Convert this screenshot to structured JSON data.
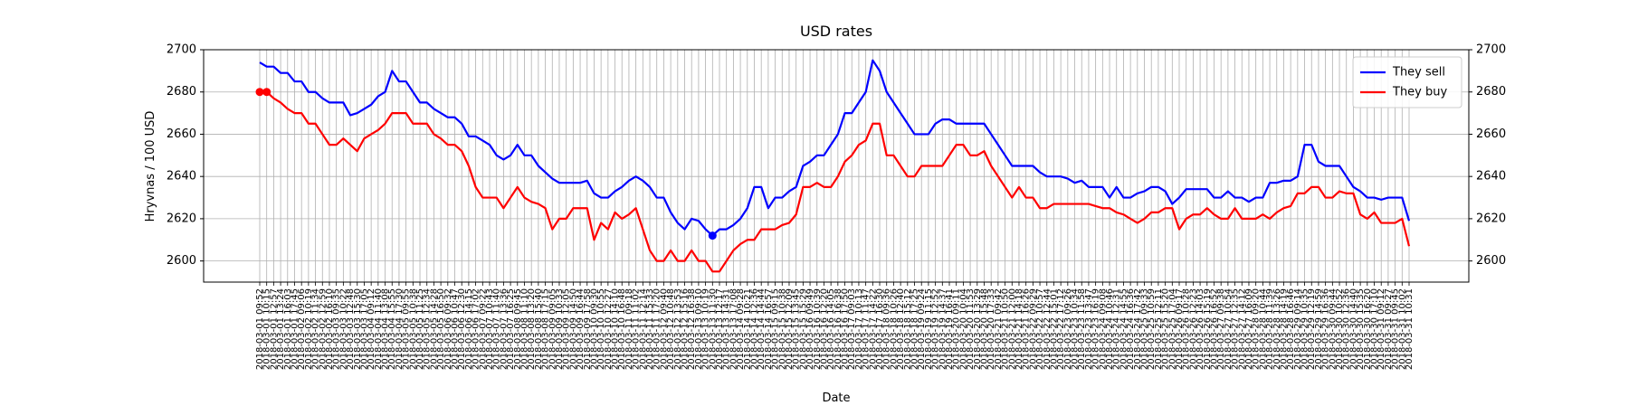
{
  "chart_data": {
    "type": "line",
    "title": "USD rates",
    "x_label": "Date",
    "y_label": "Hryvnas / 100 USD",
    "categories": [
      "2018-03-01 09:52",
      "2018-03-01 10:15",
      "2018-03-01 12:57",
      "2018-03-01 13:24",
      "2018-03-01 16:03",
      "2018-03-01 17:45",
      "2018-03-02 09:06",
      "2018-03-02 10:19",
      "2018-03-02 11:34",
      "2018-03-02 12:59",
      "2018-03-02 16:10",
      "2018-03-03 09:35",
      "2018-03-03 10:22",
      "2018-03-03 12:48",
      "2018-03-03 15:30",
      "2018-03-03 17:05",
      "2018-03-04 09:12",
      "2018-03-04 11:40",
      "2018-03-04 13:08",
      "2018-03-04 15:55",
      "2018-03-04 17:30",
      "2018-03-05 09:55",
      "2018-03-05 10:38",
      "2018-03-05 11:25",
      "2018-03-05 12:34",
      "2018-03-05 14:28",
      "2018-03-05 16:50",
      "2018-03-06 09:32",
      "2018-03-06 10:47",
      "2018-03-06 12:30",
      "2018-03-06 14:15",
      "2018-03-06 17:02",
      "2018-03-07 09:22",
      "2018-03-07 10:43",
      "2018-03-07 11:40",
      "2018-03-07 13:36",
      "2018-03-07 16:25",
      "2018-03-08 09:45",
      "2018-03-08 11:10",
      "2018-03-08 13:20",
      "2018-03-08 15:40",
      "2018-03-08 17:15",
      "2018-03-09 09:05",
      "2018-03-09 10:33",
      "2018-03-09 12:05",
      "2018-03-09 14:50",
      "2018-03-09 16:44",
      "2018-03-09 17:58",
      "2018-03-10 09:30",
      "2018-03-10 10:55",
      "2018-03-10 12:27",
      "2018-03-10 14:10",
      "2018-03-10 16:48",
      "2018-03-11 09:18",
      "2018-03-11 11:02",
      "2018-03-11 12:14",
      "2018-03-11 15:33",
      "2018-03-11 17:20",
      "2018-03-12 09:40",
      "2018-03-12 10:48",
      "2018-03-12 13:53",
      "2018-03-12 15:16",
      "2018-03-12 16:38",
      "2018-03-13 09:10",
      "2018-03-13 10:19",
      "2018-03-13 11:30",
      "2018-03-13 12:17",
      "2018-03-13 14:31",
      "2018-03-13 17:08",
      "2018-03-14 09:28",
      "2018-03-14 10:21",
      "2018-03-14 12:36",
      "2018-03-14 14:44",
      "2018-03-14 16:57",
      "2018-03-15 09:15",
      "2018-03-15 10:38",
      "2018-03-15 12:09",
      "2018-03-15 13:45",
      "2018-03-15 15:29",
      "2018-03-16 09:49",
      "2018-03-16 10:39",
      "2018-03-16 12:20",
      "2018-03-16 14:05",
      "2018-03-16 16:38",
      "2018-03-16 17:50",
      "2018-03-17 09:03",
      "2018-03-17 10:13",
      "2018-03-17 11:47",
      "2018-03-17 14:22",
      "2018-03-17 16:30",
      "2018-03-18 09:36",
      "2018-03-18 10:26",
      "2018-03-18 12:40",
      "2018-03-18 15:12",
      "2018-03-18 17:25",
      "2018-03-19 09:24",
      "2018-03-19 11:15",
      "2018-03-19 12:52",
      "2018-03-19 14:37",
      "2018-03-19 16:41",
      "2018-03-20 09:11",
      "2018-03-20 10:04",
      "2018-03-20 11:53",
      "2018-03-20 13:29",
      "2018-03-20 15:48",
      "2018-03-20 17:33",
      "2018-03-21 09:42",
      "2018-03-21 10:50",
      "2018-03-21 12:00",
      "2018-03-21 14:18",
      "2018-03-21 16:26",
      "2018-03-22 09:29",
      "2018-03-22 10:57",
      "2018-03-22 12:44",
      "2018-03-22 15:01",
      "2018-03-22 17:12",
      "2018-03-23 09:26",
      "2018-03-23 10:34",
      "2018-03-23 11:58",
      "2018-03-23 13:47",
      "2018-03-23 16:19",
      "2018-03-24 09:08",
      "2018-03-24 10:46",
      "2018-03-24 12:31",
      "2018-03-24 14:55",
      "2018-03-24 16:36",
      "2018-03-24 17:42",
      "2018-03-25 09:33",
      "2018-03-25 10:59",
      "2018-03-25 12:11",
      "2018-03-25 15:20",
      "2018-03-25 17:04",
      "2018-03-26 09:17",
      "2018-03-26 10:28",
      "2018-03-26 12:23",
      "2018-03-26 14:03",
      "2018-03-26 15:19",
      "2018-03-26 16:52",
      "2018-03-27 09:38",
      "2018-03-27 10:54",
      "2018-03-27 12:35",
      "2018-03-27 14:12",
      "2018-03-27 16:09",
      "2018-03-28 09:20",
      "2018-03-28 10:44",
      "2018-03-28 11:39",
      "2018-03-28 13:26",
      "2018-03-28 14:19",
      "2018-03-28 16:46",
      "2018-03-29 09:14",
      "2018-03-29 10:35",
      "2018-03-29 12:19",
      "2018-03-29 14:59",
      "2018-03-29 16:36",
      "2018-03-30 09:44",
      "2018-03-30 10:52",
      "2018-03-30 12:36",
      "2018-03-30 14:40",
      "2018-03-30 15:35",
      "2018-03-30 16:20",
      "2018-03-30 17:10",
      "2018-03-31 09:12",
      "2018-03-31 09:27",
      "2018-03-31 09:45",
      "2018-03-31 10:02",
      "2018-03-31 10:31"
    ],
    "series": [
      {
        "name": "They sell",
        "color": "#0000ff",
        "values": [
          2694,
          2692,
          2692,
          2689,
          2689,
          2685,
          2685,
          2680,
          2680,
          2677,
          2675,
          2675,
          2675,
          2669,
          2670,
          2672,
          2674,
          2678,
          2680,
          2690,
          2685,
          2685,
          2680,
          2675,
          2675,
          2672,
          2670,
          2668,
          2668,
          2665,
          2659,
          2659,
          2657,
          2655,
          2650,
          2648,
          2650,
          2655,
          2650,
          2650,
          2645,
          2642,
          2639,
          2637,
          2637,
          2637,
          2637,
          2638,
          2632,
          2630,
          2630,
          2633,
          2635,
          2638,
          2640,
          2638,
          2635,
          2630,
          2630,
          2623,
          2618,
          2615,
          2620,
          2619,
          2615,
          2612,
          2615,
          2615,
          2617,
          2620,
          2625,
          2635,
          2635,
          2625,
          2630,
          2630,
          2633,
          2635,
          2645,
          2647,
          2650,
          2650,
          2655,
          2660,
          2670,
          2670,
          2675,
          2680,
          2695,
          2690,
          2680,
          2675,
          2670,
          2665,
          2660,
          2660,
          2660,
          2665,
          2667,
          2667,
          2665,
          2665,
          2665,
          2665,
          2665,
          2660,
          2655,
          2650,
          2645,
          2645,
          2645,
          2645,
          2642,
          2640,
          2640,
          2640,
          2639,
          2637,
          2638,
          2635,
          2635,
          2635,
          2630,
          2635,
          2630,
          2630,
          2632,
          2633,
          2635,
          2635,
          2633,
          2627,
          2630,
          2634,
          2634,
          2634,
          2634,
          2630,
          2630,
          2633,
          2630,
          2630,
          2628,
          2630,
          2630,
          2637,
          2637,
          2638,
          2638,
          2640,
          2655,
          2655,
          2647,
          2645,
          2645,
          2645,
          2640,
          2635,
          2633,
          2630,
          2630,
          2629,
          2630,
          2630,
          2630,
          2619
        ]
      },
      {
        "name": "They buy",
        "color": "#ff0000",
        "values": [
          2680,
          2680,
          2677,
          2675,
          2672,
          2670,
          2670,
          2665,
          2665,
          2660,
          2655,
          2655,
          2658,
          2655,
          2652,
          2658,
          2660,
          2662,
          2665,
          2670,
          2670,
          2670,
          2665,
          2665,
          2665,
          2660,
          2658,
          2655,
          2655,
          2652,
          2645,
          2635,
          2630,
          2630,
          2630,
          2625,
          2630,
          2635,
          2630,
          2628,
          2627,
          2625,
          2615,
          2620,
          2620,
          2625,
          2625,
          2625,
          2610,
          2618,
          2615,
          2623,
          2620,
          2622,
          2625,
          2615,
          2605,
          2600,
          2600,
          2605,
          2600,
          2600,
          2605,
          2600,
          2600,
          2595,
          2595,
          2600,
          2605,
          2608,
          2610,
          2610,
          2615,
          2615,
          2615,
          2617,
          2618,
          2622,
          2635,
          2635,
          2637,
          2635,
          2635,
          2640,
          2647,
          2650,
          2655,
          2657,
          2665,
          2665,
          2650,
          2650,
          2645,
          2640,
          2640,
          2645,
          2645,
          2645,
          2645,
          2650,
          2655,
          2655,
          2650,
          2650,
          2652,
          2645,
          2640,
          2635,
          2630,
          2635,
          2630,
          2630,
          2625,
          2625,
          2627,
          2627,
          2627,
          2627,
          2627,
          2627,
          2626,
          2625,
          2625,
          2623,
          2622,
          2620,
          2618,
          2620,
          2623,
          2623,
          2625,
          2625,
          2615,
          2620,
          2622,
          2622,
          2625,
          2622,
          2620,
          2620,
          2625,
          2620,
          2620,
          2620,
          2622,
          2620,
          2623,
          2625,
          2626,
          2632,
          2632,
          2635,
          2635,
          2630,
          2630,
          2633,
          2632,
          2632,
          2622,
          2620,
          2623,
          2618,
          2618,
          2618,
          2620,
          2607
        ]
      }
    ],
    "ylim": [
      2590,
      2700
    ],
    "yticks": [
      2600,
      2620,
      2640,
      2660,
      2680,
      2700
    ],
    "y2lim": [
      2590,
      2700
    ],
    "y2ticks": [
      2600,
      2620,
      2640,
      2660,
      2680,
      2700
    ],
    "grid": true,
    "legend": "upper right"
  }
}
